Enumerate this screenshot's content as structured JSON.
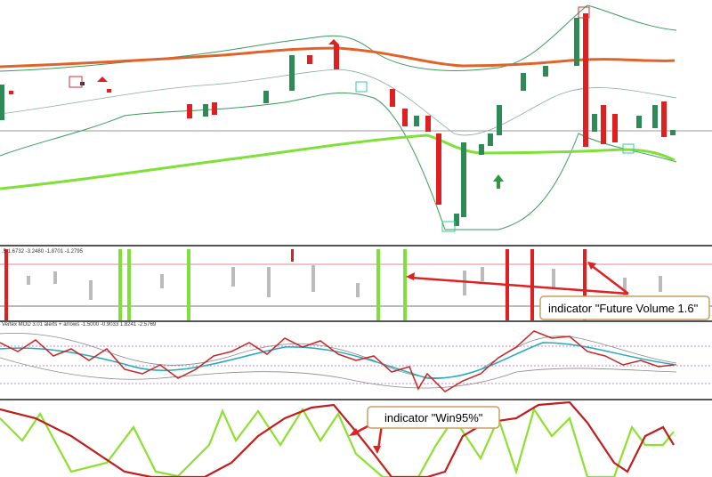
{
  "panes": [
    {
      "label": ".5 1.6732 -3.2480 -1.8701 -1.2795"
    },
    {
      "label": "Vertex MOD 3.01 alerts + arrows -1.5000 -0.9033 1.8241 -2.5769"
    }
  ],
  "annotations": [
    {
      "text": "indicator \"Future Volume 1.6\""
    },
    {
      "text": "indicator \"Win95%\""
    }
  ]
}
